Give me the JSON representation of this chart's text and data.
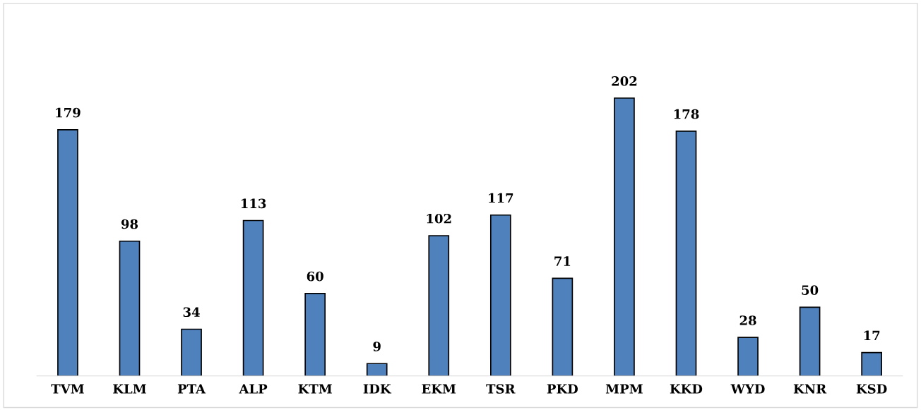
{
  "chart_data": {
    "type": "bar",
    "categories": [
      "TVM",
      "KLM",
      "PTA",
      "ALP",
      "KTM",
      "IDK",
      "EKM",
      "TSR",
      "PKD",
      "MPM",
      "KKD",
      "WYD",
      "KNR",
      "KSD"
    ],
    "values": [
      179,
      98,
      34,
      113,
      60,
      9,
      102,
      117,
      71,
      202,
      178,
      28,
      50,
      17
    ],
    "color": "#4f81bd",
    "data_labels": true,
    "grid": false,
    "legend": false
  }
}
